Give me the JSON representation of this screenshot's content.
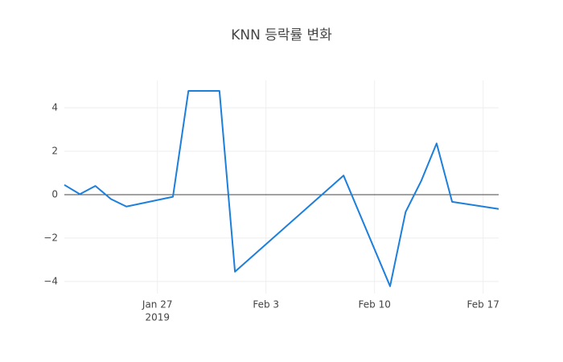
{
  "chart_data": {
    "type": "line",
    "title": "KNN 등락률 변화",
    "x": [
      "2019-01-21",
      "2019-01-22",
      "2019-01-23",
      "2019-01-24",
      "2019-01-25",
      "2019-01-28",
      "2019-01-29",
      "2019-01-30",
      "2019-01-31",
      "2019-02-01",
      "2019-02-08",
      "2019-02-11",
      "2019-02-12",
      "2019-02-13",
      "2019-02-14",
      "2019-02-15",
      "2019-02-18"
    ],
    "series": [
      {
        "name": "KNN",
        "color": "#1c7fdc",
        "values": [
          0.45,
          0.02,
          0.4,
          -0.2,
          -0.55,
          -0.1,
          4.78,
          4.78,
          4.78,
          -3.55,
          0.88,
          -4.22,
          -0.8,
          0.62,
          2.36,
          -0.33,
          -0.66
        ]
      }
    ],
    "xlim": [
      "2019-01-21",
      "2019-02-18"
    ],
    "xticks": [
      {
        "value": "2019-01-27",
        "label": "Jan 27"
      },
      {
        "value": "2019-02-03",
        "label": "Feb 3"
      },
      {
        "value": "2019-02-10",
        "label": "Feb 10"
      },
      {
        "value": "2019-02-17",
        "label": "Feb 17"
      }
    ],
    "x_year_label": "2019",
    "ylim": [
      -4.56,
      5.26
    ],
    "yticks": [
      {
        "value": -4,
        "label": "−4"
      },
      {
        "value": -2,
        "label": "−2"
      },
      0,
      2,
      4
    ],
    "grid": true,
    "zeroline": true
  }
}
